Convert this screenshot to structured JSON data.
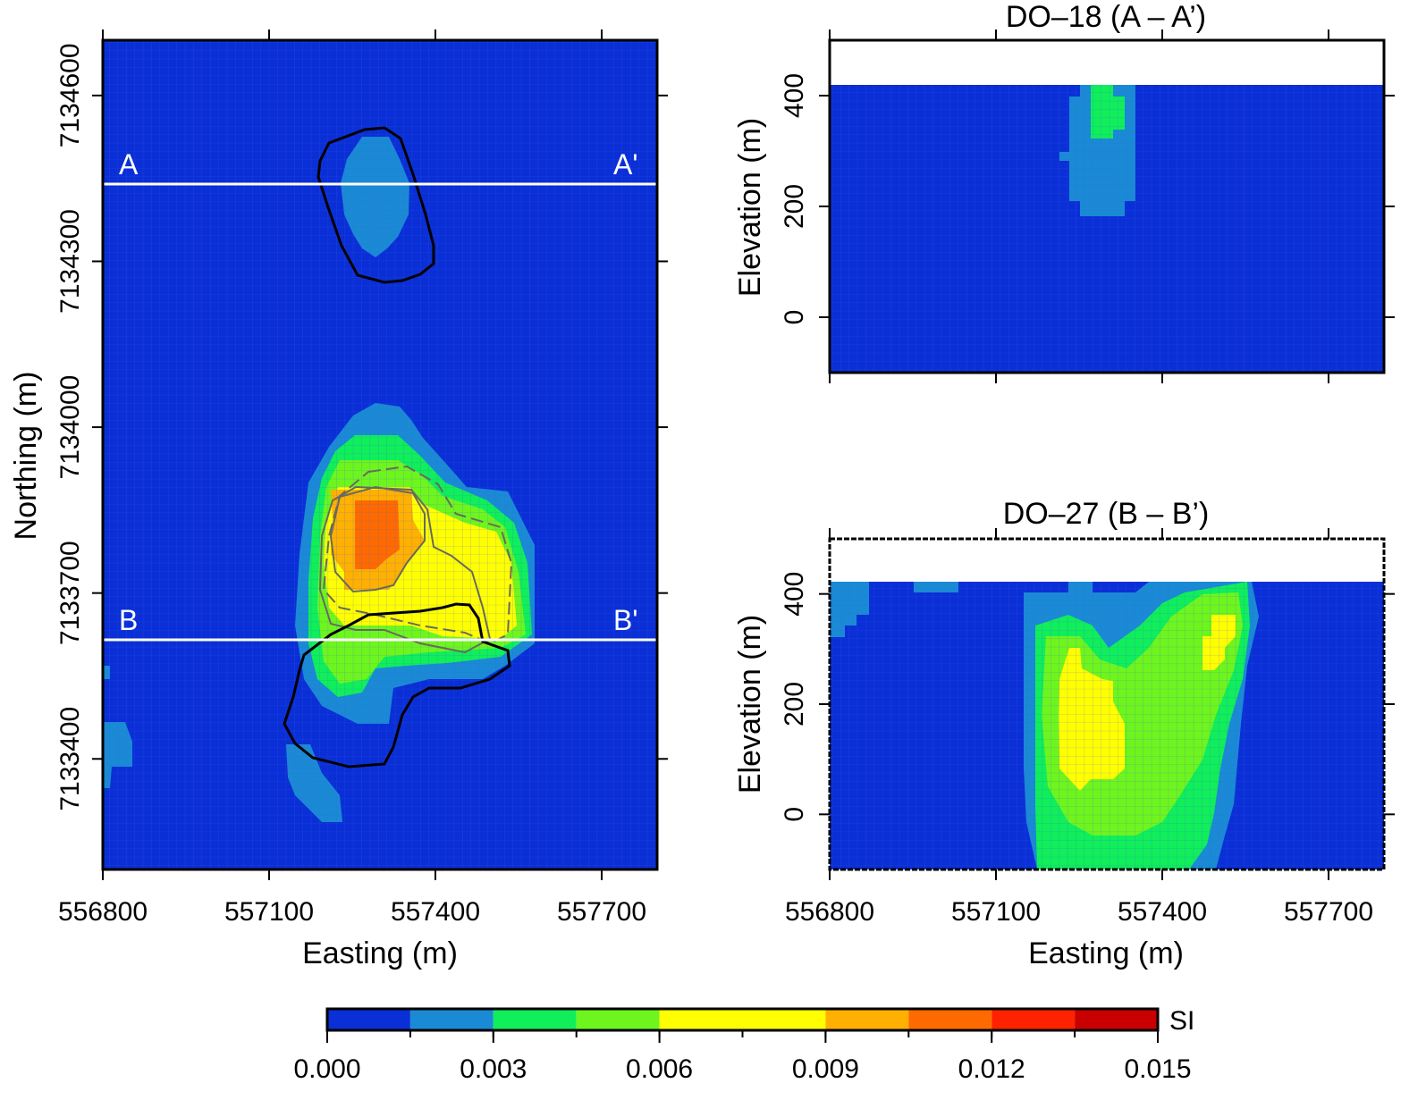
{
  "colors": {
    "background": "#0a2fd6",
    "grid": "#3b5ee8",
    "line_white": "#ffffff",
    "outline_black": "#000000"
  },
  "colorbar": {
    "unit_label": "SI",
    "tick_labels": [
      "0.000",
      "0.003",
      "0.006",
      "0.009",
      "0.012",
      "0.015"
    ],
    "tick_values": [
      0,
      0.003,
      0.006,
      0.009,
      0.012,
      0.015
    ],
    "bins": [
      {
        "from": 0.0,
        "to": 0.0015,
        "color": "#0a2fd6"
      },
      {
        "from": 0.0015,
        "to": 0.003,
        "color": "#1a8ad4"
      },
      {
        "from": 0.003,
        "to": 0.0045,
        "color": "#10ee5a"
      },
      {
        "from": 0.0045,
        "to": 0.006,
        "color": "#6ef51e"
      },
      {
        "from": 0.006,
        "to": 0.009,
        "color": "#ffff00"
      },
      {
        "from": 0.009,
        "to": 0.0105,
        "color": "#ffb000"
      },
      {
        "from": 0.0105,
        "to": 0.012,
        "color": "#ff6a00"
      },
      {
        "from": 0.012,
        "to": 0.0135,
        "color": "#ff2200"
      },
      {
        "from": 0.0135,
        "to": 0.015,
        "color": "#c80000"
      }
    ]
  },
  "chart_data": [
    {
      "type": "heatmap",
      "title": "",
      "xlabel": "Easting (m)",
      "ylabel": "Northing (m)",
      "xlim": [
        556800,
        557800
      ],
      "ylim": [
        7133200,
        7134700
      ],
      "xticks": [
        "556800",
        "557100",
        "557400",
        "557700"
      ],
      "yticks": [
        "7133400",
        "7133700",
        "7134000",
        "7134300",
        "7134600"
      ],
      "grid": true,
      "section_lines": [
        {
          "label_start": "A",
          "label_end": "A'",
          "northing": 7134440
        },
        {
          "label_start": "B",
          "label_end": "B'",
          "northing": 7133620
        }
      ],
      "anomalies": [
        {
          "easting": 557295,
          "northing": 7134420,
          "value": 0.0025
        },
        {
          "easting": 557290,
          "northing": 7133760,
          "value": 0.0085
        },
        {
          "easting": 557260,
          "northing": 7133800,
          "value": 0.0112
        },
        {
          "easting": 557445,
          "northing": 7133720,
          "value": 0.0068
        },
        {
          "easting": 557220,
          "northing": 7133580,
          "value": 0.0048
        },
        {
          "easting": 557300,
          "northing": 7133450,
          "value": 0.002
        },
        {
          "easting": 557180,
          "northing": 7133290,
          "value": 0.002
        },
        {
          "easting": 556820,
          "northing": 7133400,
          "value": 0.002
        }
      ]
    },
    {
      "type": "heatmap",
      "title": "DO–18 (A – A’)",
      "xlabel": "",
      "ylabel": "Elevation (m)",
      "xlim": [
        556800,
        557800
      ],
      "ylim": [
        -100,
        500
      ],
      "surface_elevation": 420,
      "yticks": [
        "0",
        "200",
        "400"
      ],
      "grid": true,
      "anomalies": [
        {
          "easting": 557300,
          "elevation": 370,
          "value": 0.0035
        },
        {
          "easting": 557300,
          "elevation": 260,
          "value": 0.0022
        }
      ]
    },
    {
      "type": "heatmap",
      "title": "DO–27 (B – B’)",
      "xlabel": "Easting (m)",
      "ylabel": "Elevation (m)",
      "xlim": [
        556800,
        557800
      ],
      "ylim": [
        -100,
        500
      ],
      "surface_elevation": 420,
      "xticks": [
        "556800",
        "557100",
        "557400",
        "557700"
      ],
      "yticks": [
        "0",
        "200",
        "400"
      ],
      "grid": true,
      "anomalies": [
        {
          "easting": 557260,
          "elevation": 200,
          "value": 0.0072
        },
        {
          "easting": 557490,
          "elevation": 340,
          "value": 0.0065
        },
        {
          "easting": 557330,
          "elevation": 100,
          "value": 0.005
        },
        {
          "easting": 556850,
          "elevation": 380,
          "value": 0.002
        }
      ]
    }
  ]
}
